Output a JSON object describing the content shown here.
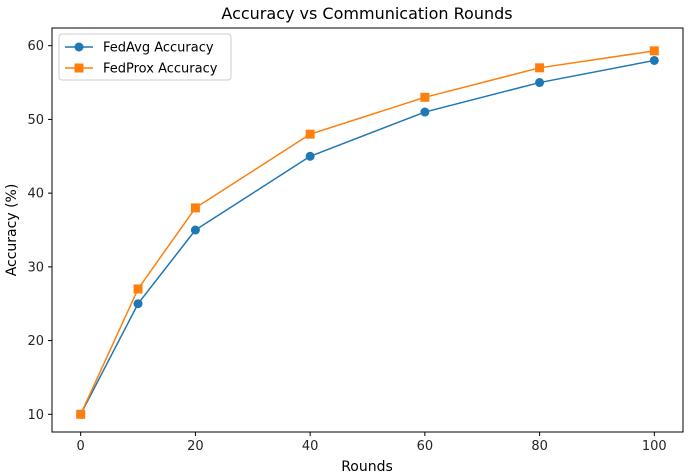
{
  "chart_data": {
    "type": "line",
    "title": "Accuracy vs Communication Rounds",
    "xlabel": "Rounds",
    "ylabel": "Accuracy (%)",
    "x": [
      0,
      10,
      20,
      40,
      60,
      80,
      100
    ],
    "xlim": [
      -5,
      105
    ],
    "ylim": [
      7.6,
      62.4
    ],
    "xticks": [
      0,
      20,
      40,
      60,
      80,
      100
    ],
    "yticks": [
      10,
      20,
      30,
      40,
      50,
      60
    ],
    "grid": false,
    "legend_position": "top-left",
    "series": [
      {
        "name": "FedAvg Accuracy",
        "values": [
          10,
          25,
          35,
          45,
          51,
          55,
          58
        ],
        "color": "#1f77b4",
        "marker": "circle"
      },
      {
        "name": "FedProx Accuracy",
        "values": [
          10,
          27,
          38,
          48,
          53,
          57,
          59.3
        ],
        "color": "#ff7f0e",
        "marker": "square"
      }
    ]
  }
}
